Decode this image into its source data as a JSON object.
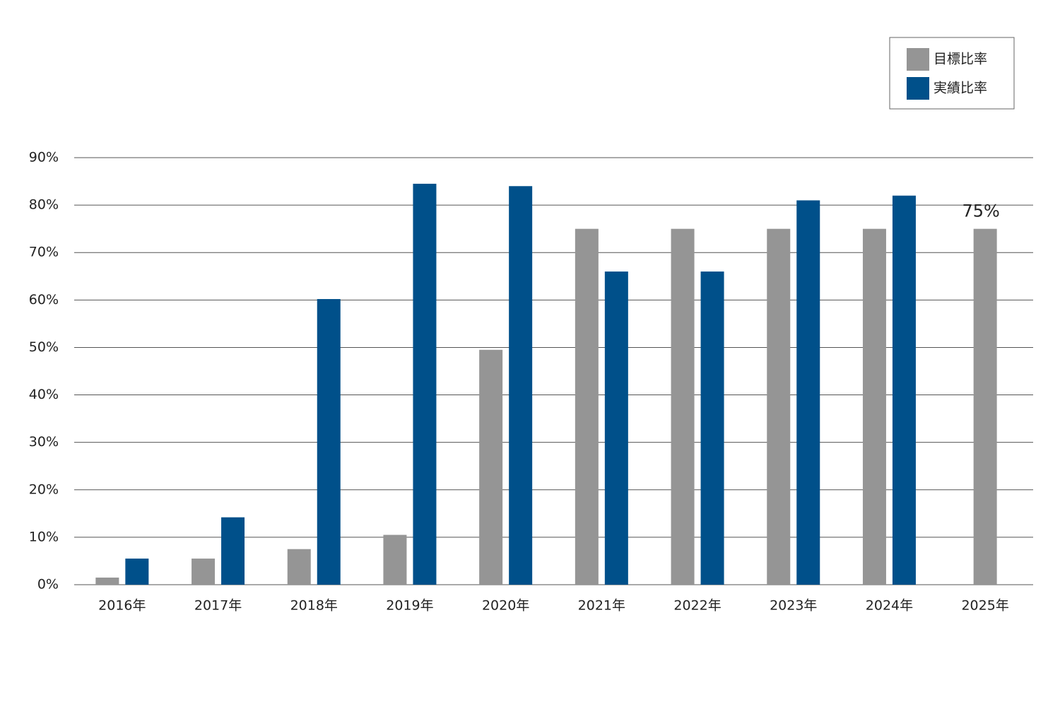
{
  "chart_data": {
    "type": "bar",
    "categories": [
      "2016年",
      "2017年",
      "2018年",
      "2019年",
      "2020年",
      "2021年",
      "2022年",
      "2023年",
      "2024年",
      "2025年"
    ],
    "series": [
      {
        "name": "目標比率",
        "color": "#959595",
        "values": [
          1.5,
          5.5,
          7.5,
          10.5,
          49.5,
          75,
          75,
          75,
          75,
          75
        ],
        "value_labels": [
          null,
          null,
          null,
          null,
          null,
          null,
          null,
          null,
          null,
          "75%"
        ]
      },
      {
        "name": "実績比率",
        "color": "#00508a",
        "values": [
          5.5,
          14.2,
          60.2,
          84.5,
          84,
          66,
          66,
          81,
          82,
          null
        ]
      }
    ],
    "ylim": [
      0,
      90
    ],
    "yticks": [
      {
        "value": 0,
        "label": "0%"
      },
      {
        "value": 10,
        "label": "10%"
      },
      {
        "value": 20,
        "label": "20%"
      },
      {
        "value": 30,
        "label": "30%"
      },
      {
        "value": 40,
        "label": "40%"
      },
      {
        "value": 50,
        "label": "50%"
      },
      {
        "value": 60,
        "label": "60%"
      },
      {
        "value": 70,
        "label": "70%"
      },
      {
        "value": 80,
        "label": "80%"
      },
      {
        "value": 90,
        "label": "90%"
      }
    ],
    "grid": true,
    "legend": "top-right"
  }
}
